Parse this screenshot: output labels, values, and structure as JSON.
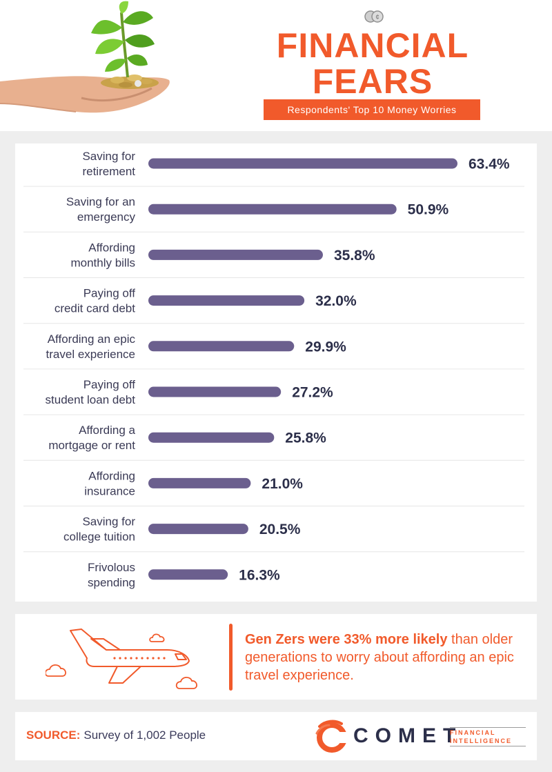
{
  "header": {
    "title_line1": "FINANCIAL",
    "title_line2": "FEARS",
    "subtitle": "Respondents' Top 10 Money Worries"
  },
  "chart_data": {
    "type": "bar",
    "orientation": "horizontal",
    "title": "Respondents' Top 10 Money Worries",
    "categories": [
      [
        "Saving for",
        "retirement"
      ],
      [
        "Saving for an",
        "emergency"
      ],
      [
        "Affording",
        "monthly bills"
      ],
      [
        "Paying off",
        "credit card debt"
      ],
      [
        "Affording an epic",
        "travel experience"
      ],
      [
        "Paying off",
        "student loan debt"
      ],
      [
        "Affording a",
        "mortgage or rent"
      ],
      [
        "Affording",
        "insurance"
      ],
      [
        "Saving for",
        "college tuition"
      ],
      [
        "Frivolous",
        "spending"
      ]
    ],
    "values": [
      63.4,
      50.9,
      35.8,
      32.0,
      29.9,
      27.2,
      25.8,
      21.0,
      20.5,
      16.3
    ],
    "value_labels": [
      "63.4%",
      "50.9%",
      "35.8%",
      "32.0%",
      "29.9%",
      "27.2%",
      "25.8%",
      "21.0%",
      "20.5%",
      "16.3%"
    ],
    "xlim": [
      0,
      63.4
    ],
    "bar_color": "#6b5f8e",
    "label_color": "#2c2f4a"
  },
  "callout": {
    "highlight": "Gen Zers were 33% more likely",
    "text": " than older generations to worry about affording an epic travel experience.",
    "accent_color": "#f15a2b"
  },
  "footer": {
    "source_label": "SOURCE:",
    "source_text": "Survey of 1,002 People",
    "logo_word": "COMET",
    "logo_tagline": "FINANCIAL INTELLIGENCE"
  },
  "icons": [
    "plant-in-hand-icon",
    "coins-icon",
    "airplane-icon",
    "cloud-icon",
    "comet-logo-icon"
  ]
}
